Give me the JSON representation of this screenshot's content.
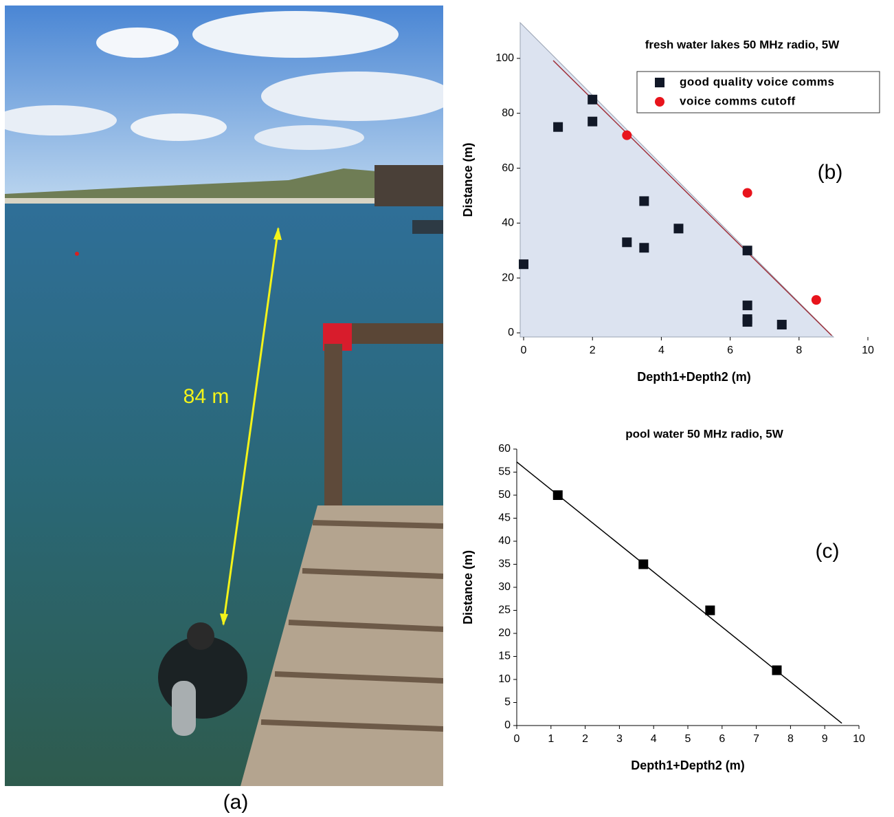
{
  "photo": {
    "annotation": "84 m",
    "label": "(a)"
  },
  "chart_data": [
    {
      "type": "scatter",
      "title": "fresh water lakes  50 MHz radio, 5W",
      "x_label": "Depth1+Depth2 (m)",
      "y_label": "Distance (m)",
      "annotation": "(b)",
      "xlim": [
        -0.1,
        10
      ],
      "ylim": [
        -1.5,
        113
      ],
      "xticks": [
        0,
        2,
        4,
        6,
        8,
        10
      ],
      "yticks": [
        0,
        20,
        40,
        60,
        80,
        100
      ],
      "legend": "upper right",
      "axis_lines": false,
      "region": {
        "color": "#dce3f0",
        "x": [
          -0.1,
          -0.1,
          9
        ],
        "y": [
          113,
          -1.5,
          -1.5
        ]
      },
      "fit_line": {
        "color": "#a0303a",
        "x": [
          0.86,
          8.95
        ],
        "y": [
          99.2,
          -1
        ]
      },
      "series": [
        {
          "name": "good quality voice comms",
          "color": "#111827",
          "marker": "square",
          "x": [
            0,
            1,
            2,
            2,
            3,
            3.5,
            3.5,
            4.5,
            6.5,
            6.5,
            6.5,
            6.5,
            7.5
          ],
          "values": [
            25,
            75,
            85,
            77,
            33,
            48,
            31,
            38,
            30,
            10,
            5,
            4,
            3
          ]
        },
        {
          "name": "voice comms cutoff",
          "color": "#e8141c",
          "marker": "circle",
          "x": [
            3,
            6.5,
            8.5
          ],
          "values": [
            72,
            51,
            12
          ]
        }
      ]
    },
    {
      "type": "scatter",
      "title": "pool water  50 MHz radio, 5W",
      "x_label": "Depth1+Depth2 (m)",
      "y_label": "Distance (m)",
      "annotation": "(c)",
      "xlim": [
        0,
        10
      ],
      "ylim": [
        0,
        60
      ],
      "xticks": [
        0,
        1,
        2,
        3,
        4,
        5,
        6,
        7,
        8,
        9,
        10
      ],
      "yticks": [
        0,
        5,
        10,
        15,
        20,
        25,
        30,
        35,
        40,
        45,
        50,
        55,
        60
      ],
      "axis_lines": true,
      "fit_line": {
        "color": "#000000",
        "x": [
          0,
          9.5
        ],
        "y": [
          57.2,
          0.5
        ]
      },
      "series": [
        {
          "color": "#000000",
          "marker": "square",
          "x": [
            1.2,
            3.7,
            5.65,
            7.6
          ],
          "values": [
            50,
            35,
            25,
            12
          ]
        }
      ]
    }
  ]
}
